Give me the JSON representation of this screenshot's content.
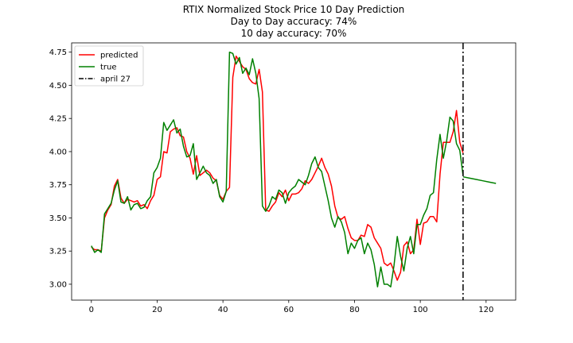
{
  "chart_data": {
    "type": "line",
    "title_lines": [
      "RTIX Normalized Stock Price 10 Day Prediction",
      "Day to Day accuracy: 74%",
      "10 day accuracy: 70%"
    ],
    "xlabel": "",
    "ylabel": "",
    "xlim": [
      -6,
      129
    ],
    "ylim": [
      2.88,
      4.82
    ],
    "xticks": [
      0,
      20,
      40,
      60,
      80,
      100,
      120
    ],
    "yticks": [
      3.0,
      3.25,
      3.5,
      3.75,
      4.0,
      4.25,
      4.5,
      4.75
    ],
    "ytick_labels": [
      "3.00",
      "3.25",
      "3.50",
      "3.75",
      "4.00",
      "4.25",
      "4.50",
      "4.75"
    ],
    "grid": false,
    "legend_position": "top-left",
    "series": [
      {
        "name": "predicted",
        "color": "#ff0000",
        "x": [
          0,
          1,
          2,
          3,
          4,
          5,
          6,
          7,
          8,
          9,
          10,
          11,
          12,
          13,
          14,
          15,
          16,
          17,
          18,
          19,
          20,
          21,
          22,
          23,
          24,
          25,
          26,
          27,
          28,
          29,
          30,
          31,
          32,
          33,
          34,
          35,
          36,
          37,
          38,
          39,
          40,
          41,
          42,
          43,
          44,
          45,
          46,
          47,
          48,
          49,
          50,
          51,
          52,
          53,
          54,
          55,
          56,
          57,
          58,
          59,
          60,
          61,
          62,
          63,
          64,
          65,
          66,
          67,
          68,
          69,
          70,
          71,
          72,
          73,
          74,
          75,
          76,
          77,
          78,
          79,
          80,
          81,
          82,
          83,
          84,
          85,
          86,
          87,
          88,
          89,
          90,
          91,
          92,
          93,
          94,
          95,
          96,
          97,
          98,
          99,
          100,
          101,
          102,
          103,
          104,
          105,
          106,
          107,
          108,
          109,
          110,
          111,
          112,
          113
        ],
        "y": [
          3.28,
          3.26,
          3.26,
          3.25,
          3.5,
          3.56,
          3.6,
          3.74,
          3.79,
          3.65,
          3.61,
          3.64,
          3.63,
          3.62,
          3.63,
          3.59,
          3.6,
          3.57,
          3.63,
          3.67,
          3.79,
          3.81,
          4.0,
          3.99,
          4.15,
          4.17,
          4.18,
          4.12,
          4.11,
          4.0,
          3.95,
          3.83,
          3.97,
          3.82,
          3.84,
          3.86,
          3.84,
          3.8,
          3.78,
          3.67,
          3.64,
          3.7,
          3.73,
          4.56,
          4.72,
          4.68,
          4.64,
          4.62,
          4.55,
          4.52,
          4.51,
          4.62,
          4.45,
          3.56,
          3.55,
          3.59,
          3.62,
          3.69,
          3.66,
          3.71,
          3.63,
          3.68,
          3.68,
          3.69,
          3.72,
          3.78,
          3.76,
          3.79,
          3.84,
          3.89,
          3.95,
          3.88,
          3.83,
          3.74,
          3.59,
          3.5,
          3.49,
          3.51,
          3.42,
          3.35,
          3.33,
          3.33,
          3.37,
          3.36,
          3.45,
          3.43,
          3.35,
          3.31,
          3.27,
          3.16,
          3.14,
          3.16,
          3.1,
          3.03,
          3.09,
          3.29,
          3.32,
          3.23,
          3.26,
          3.49,
          3.3,
          3.46,
          3.47,
          3.51,
          3.51,
          3.47,
          3.83,
          4.07,
          4.07,
          4.07,
          4.15,
          4.31,
          4.07,
          3.99
        ]
      },
      {
        "name": "true",
        "color": "#008000",
        "x": [
          0,
          1,
          2,
          3,
          4,
          5,
          6,
          7,
          8,
          9,
          10,
          11,
          12,
          13,
          14,
          15,
          16,
          17,
          18,
          19,
          20,
          21,
          22,
          23,
          24,
          25,
          26,
          27,
          28,
          29,
          30,
          31,
          32,
          33,
          34,
          35,
          36,
          37,
          38,
          39,
          40,
          41,
          42,
          43,
          44,
          45,
          46,
          47,
          48,
          49,
          50,
          51,
          52,
          53,
          54,
          55,
          56,
          57,
          58,
          59,
          60,
          61,
          62,
          63,
          64,
          65,
          66,
          67,
          68,
          69,
          70,
          71,
          72,
          73,
          74,
          75,
          76,
          77,
          78,
          79,
          80,
          81,
          82,
          83,
          84,
          85,
          86,
          87,
          88,
          89,
          90,
          91,
          92,
          93,
          94,
          95,
          96,
          97,
          98,
          99,
          100,
          101,
          102,
          103,
          104,
          105,
          106,
          107,
          108,
          109,
          110,
          111,
          112,
          113
        ],
        "y": [
          3.29,
          3.24,
          3.26,
          3.24,
          3.53,
          3.57,
          3.61,
          3.71,
          3.78,
          3.62,
          3.61,
          3.66,
          3.56,
          3.6,
          3.61,
          3.57,
          3.58,
          3.63,
          3.66,
          3.84,
          3.88,
          3.95,
          4.22,
          4.16,
          4.2,
          4.24,
          4.14,
          4.17,
          4.04,
          3.96,
          3.97,
          4.06,
          3.79,
          3.84,
          3.89,
          3.84,
          3.82,
          3.76,
          3.79,
          3.66,
          3.62,
          3.7,
          4.75,
          4.74,
          4.66,
          4.71,
          4.59,
          4.63,
          4.58,
          4.7,
          4.59,
          4.4,
          3.59,
          3.55,
          3.59,
          3.66,
          3.64,
          3.71,
          3.69,
          3.61,
          3.69,
          3.72,
          3.74,
          3.79,
          3.77,
          3.75,
          3.82,
          3.91,
          3.96,
          3.88,
          3.85,
          3.74,
          3.63,
          3.5,
          3.43,
          3.51,
          3.47,
          3.39,
          3.23,
          3.31,
          3.27,
          3.33,
          3.35,
          3.23,
          3.31,
          3.26,
          3.15,
          2.98,
          3.13,
          3.0,
          3.0,
          2.98,
          3.14,
          3.36,
          3.21,
          3.1,
          3.27,
          3.36,
          3.23,
          3.45,
          3.45,
          3.52,
          3.57,
          3.67,
          3.69,
          3.94,
          4.13,
          3.95,
          4.08,
          4.26,
          4.23,
          4.06,
          4.01,
          3.82
        ],
        "x_offset_note": ""
      },
      {
        "name": "",
        "color": "#008000",
        "x": [
          113,
          115,
          117,
          119,
          121,
          123
        ],
        "y": [
          3.81,
          3.8,
          3.79,
          3.78,
          3.77,
          3.76
        ]
      }
    ],
    "vline": {
      "x": 113,
      "label": "april 27",
      "color": "#000000",
      "style": "dashdot"
    }
  }
}
